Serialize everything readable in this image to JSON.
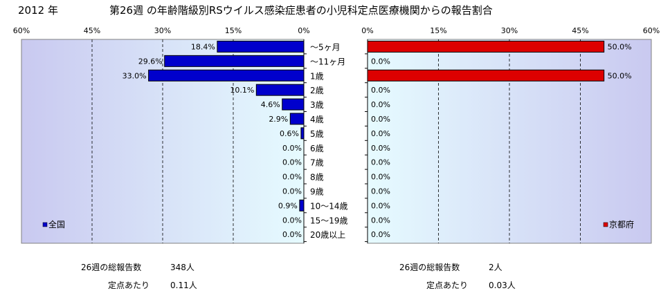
{
  "header": {
    "year": "2012 年",
    "title": "第26週 の年齢階級別RSウイルス感染症患者の小児科定点医療機関からの報告割合"
  },
  "chart_data": [
    {
      "type": "bar",
      "orientation": "horizontal",
      "x_direction": "reversed",
      "xlim": [
        0,
        60
      ],
      "x_ticks": [
        "60%",
        "45%",
        "30%",
        "15%",
        "0%"
      ],
      "grid": true,
      "legend": "bottom-left",
      "categories": [
        "〜5ヶ月",
        "〜11ヶ月",
        "1歳",
        "2歳",
        "3歳",
        "4歳",
        "5歳",
        "6歳",
        "7歳",
        "8歳",
        "9歳",
        "10〜14歳",
        "15〜19歳",
        "20歳以上"
      ],
      "series": [
        {
          "name": "全国",
          "color": "#0000cc",
          "values": [
            18.4,
            29.6,
            33.0,
            10.1,
            4.6,
            2.9,
            0.6,
            0.0,
            0.0,
            0.0,
            0.0,
            0.9,
            0.0,
            0.0
          ],
          "labels": [
            "18.4%",
            "29.6%",
            "33.0%",
            "10.1%",
            "4.6%",
            "2.9%",
            "0.6%",
            "0.0%",
            "0.0%",
            "0.0%",
            "0.0%",
            "0.9%",
            "0.0%",
            "0.0%"
          ]
        }
      ]
    },
    {
      "type": "bar",
      "orientation": "horizontal",
      "xlim": [
        0,
        60
      ],
      "x_ticks": [
        "0%",
        "15%",
        "30%",
        "45%",
        "60%"
      ],
      "grid": true,
      "legend": "bottom-right",
      "categories": [
        "〜5ヶ月",
        "〜11ヶ月",
        "1歳",
        "2歳",
        "3歳",
        "4歳",
        "5歳",
        "6歳",
        "7歳",
        "8歳",
        "9歳",
        "10〜14歳",
        "15〜19歳",
        "20歳以上"
      ],
      "series": [
        {
          "name": "京都府",
          "color": "#dd0000",
          "values": [
            50.0,
            0.0,
            50.0,
            0.0,
            0.0,
            0.0,
            0.0,
            0.0,
            0.0,
            0.0,
            0.0,
            0.0,
            0.0,
            0.0
          ],
          "labels": [
            "50.0%",
            "0.0%",
            "50.0%",
            "0.0%",
            "0.0%",
            "0.0%",
            "0.0%",
            "0.0%",
            "0.0%",
            "0.0%",
            "0.0%",
            "0.0%",
            "0.0%",
            "0.0%"
          ]
        }
      ]
    }
  ],
  "stats": {
    "national": {
      "total_label": "26週の総報告数",
      "total_value": "348人",
      "per_label": "定点あたり",
      "per_value": "0.11人"
    },
    "kyoto": {
      "total_label": "26週の総報告数",
      "total_value": "2人",
      "per_label": "定点あたり",
      "per_value": "0.03人"
    }
  }
}
